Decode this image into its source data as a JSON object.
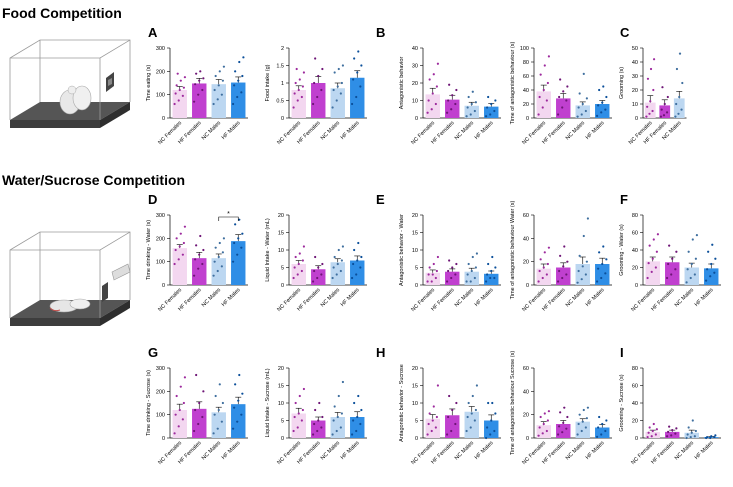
{
  "sections": [
    {
      "title": "Food Competition"
    },
    {
      "title": "Water/Sucrose Competition"
    }
  ],
  "panel_letters": [
    "A",
    "B",
    "C",
    "D",
    "E",
    "F",
    "G",
    "H",
    "I"
  ],
  "colors": {
    "NC Females": "#f3d7f0",
    "HF Females": "#c040cf",
    "NC Males": "#bcd7f1",
    "HF Males": "#2f8ee6",
    "dot_NC Females": "#9d2a9d",
    "dot_HF Females": "#6e1576",
    "dot_NC Males": "#3f6f9f",
    "dot_HF Males": "#0b4f9a"
  },
  "chart_data": [
    {
      "type": "bar",
      "categories": [
        "NC Females",
        "HF Females",
        "NC Males",
        "HF Males"
      ],
      "values": [
        120,
        148,
        145,
        152
      ],
      "errors": [
        15,
        22,
        20,
        24
      ],
      "points": [
        [
          60,
          75,
          95,
          105,
          120,
          130,
          140,
          160,
          175,
          190
        ],
        [
          70,
          100,
          120,
          145,
          160,
          170,
          190,
          200
        ],
        [
          60,
          80,
          100,
          120,
          140,
          160,
          180,
          200,
          220
        ],
        [
          60,
          90,
          110,
          140,
          160,
          180,
          200,
          240,
          260
        ]
      ],
      "ylabel": "Time eating (s)",
      "ylim": [
        0,
        300
      ],
      "yticks": [
        0,
        100,
        200,
        300
      ]
    },
    {
      "type": "bar",
      "categories": [
        "NC Females",
        "HF Females",
        "NC Males",
        "HF Males"
      ],
      "values": [
        0.8,
        1.0,
        0.85,
        1.15
      ],
      "errors": [
        0.12,
        0.18,
        0.15,
        0.2
      ],
      "points": [
        [
          0.3,
          0.5,
          0.6,
          0.7,
          0.8,
          0.9,
          1.0,
          1.1,
          1.3,
          1.4
        ],
        [
          0.4,
          0.6,
          0.8,
          1.0,
          1.2,
          1.4,
          1.7
        ],
        [
          0.3,
          0.5,
          0.7,
          0.8,
          0.9,
          1.0,
          1.3,
          1.4,
          1.5
        ],
        [
          0.4,
          0.6,
          0.9,
          1.1,
          1.3,
          1.5,
          1.7,
          1.9
        ]
      ],
      "ylabel": "Food intake (g)",
      "ylim": [
        0,
        2.0
      ],
      "yticks": [
        0.0,
        0.5,
        1.0,
        1.5,
        2.0
      ]
    },
    {
      "type": "bar",
      "categories": [
        "NC Females",
        "HF Females",
        "NC Males",
        "HF Males"
      ],
      "values": [
        13.5,
        10.5,
        7,
        6.5
      ],
      "errors": [
        3.5,
        2.5,
        2,
        1.8
      ],
      "points": [
        [
          3,
          5,
          8,
          10,
          14,
          18,
          22,
          25,
          31
        ],
        [
          3,
          5,
          8,
          10,
          13,
          16,
          19
        ],
        [
          1,
          2,
          4,
          6,
          8,
          9,
          12,
          15
        ],
        [
          1,
          2,
          4,
          6,
          8,
          10,
          12
        ]
      ],
      "ylabel": "Antagonistic behavior",
      "ylim": [
        0,
        40
      ],
      "yticks": [
        0,
        10,
        20,
        30,
        40
      ]
    },
    {
      "type": "bar",
      "categories": [
        "NC Females",
        "HF Females",
        "NC Males",
        "HF Males"
      ],
      "values": [
        38,
        28,
        18,
        20
      ],
      "errors": [
        9,
        7,
        5,
        5
      ],
      "points": [
        [
          5,
          15,
          25,
          30,
          40,
          50,
          62,
          75,
          88
        ],
        [
          5,
          15,
          25,
          30,
          38,
          45,
          55
        ],
        [
          2,
          5,
          10,
          15,
          20,
          28,
          35,
          63
        ],
        [
          3,
          8,
          12,
          18,
          22,
          30,
          40,
          45
        ]
      ],
      "ylabel": "Time of antagonistic behaviour (s)",
      "ylim": [
        0,
        100
      ],
      "yticks": [
        0,
        20,
        40,
        60,
        80,
        100
      ]
    },
    {
      "type": "bar",
      "categories": [
        "NC Females",
        "HF Females",
        "NC Males"
      ],
      "values": [
        11,
        9,
        14
      ],
      "errors": [
        5,
        4,
        5
      ],
      "points": [
        [
          1,
          3,
          5,
          8,
          12,
          20,
          28,
          35,
          42
        ],
        [
          1,
          2,
          4,
          6,
          10,
          15,
          22
        ],
        [
          1,
          3,
          6,
          10,
          15,
          25,
          35,
          46
        ]
      ],
      "ylabel": "Grooming (s)",
      "ylim": [
        0,
        50
      ],
      "yticks": [
        0,
        10,
        20,
        30,
        40,
        50
      ]
    },
    {
      "type": "bar",
      "categories": [
        "NC Females",
        "HF Females",
        "NC Males",
        "HF Males"
      ],
      "values": [
        158,
        115,
        115,
        188
      ],
      "errors": [
        15,
        25,
        18,
        28
      ],
      "points": [
        [
          90,
          110,
          130,
          150,
          165,
          180,
          200,
          220,
          250
        ],
        [
          40,
          70,
          90,
          110,
          130,
          150,
          170,
          210
        ],
        [
          40,
          60,
          80,
          100,
          120,
          140,
          160,
          180,
          200
        ],
        [
          100,
          130,
          160,
          180,
          200,
          220,
          260,
          280
        ]
      ],
      "significance": {
        "from": 2,
        "to": 3,
        "label": "*"
      },
      "ylabel": "Time drinking - Water (s)",
      "ylim": [
        0,
        300
      ],
      "yticks": [
        0,
        100,
        200,
        300
      ]
    },
    {
      "type": "bar",
      "categories": [
        "NC Females",
        "HF Females",
        "NC Males",
        "HF Males"
      ],
      "values": [
        6,
        4.5,
        6.5,
        7
      ],
      "errors": [
        1,
        1,
        1,
        1.3
      ],
      "points": [
        [
          2,
          3,
          4,
          5,
          6,
          7,
          8,
          9,
          11
        ],
        [
          1,
          2,
          3,
          4,
          5,
          6,
          8
        ],
        [
          2,
          3,
          4,
          5,
          6,
          7,
          8,
          10,
          11
        ],
        [
          2,
          3,
          5,
          6,
          7,
          8,
          10,
          12
        ]
      ],
      "ylabel": "Liquid Intake - Water (mL)",
      "ylim": [
        0,
        20
      ],
      "yticks": [
        0,
        5,
        10,
        15,
        20
      ]
    },
    {
      "type": "bar",
      "categories": [
        "NC Females",
        "HF Females",
        "NC Males",
        "HF Males"
      ],
      "values": [
        3.5,
        3.8,
        3.8,
        3.2
      ],
      "errors": [
        0.8,
        0.8,
        1,
        0.8
      ],
      "points": [
        [
          1,
          1,
          2,
          3,
          3,
          4,
          5,
          6,
          8
        ],
        [
          1,
          2,
          3,
          4,
          5,
          6,
          7
        ],
        [
          1,
          1,
          2,
          3,
          4,
          5,
          6,
          8,
          9
        ],
        [
          1,
          2,
          2,
          3,
          4,
          5,
          6,
          8
        ]
      ],
      "ylabel": "Antagonistic behavior - Water",
      "ylim": [
        0,
        20
      ],
      "yticks": [
        0,
        5,
        10,
        15,
        20
      ]
    },
    {
      "type": "bar",
      "categories": [
        "NC Females",
        "HF Females",
        "NC Males",
        "HF Males"
      ],
      "values": [
        14,
        15,
        18,
        18
      ],
      "errors": [
        4,
        4,
        6,
        5
      ],
      "points": [
        [
          3,
          6,
          9,
          12,
          15,
          18,
          22,
          28,
          32
        ],
        [
          3,
          6,
          9,
          12,
          16,
          20,
          25,
          33
        ],
        [
          2,
          5,
          9,
          12,
          16,
          20,
          25,
          42,
          57
        ],
        [
          3,
          6,
          10,
          14,
          18,
          22,
          28,
          33
        ]
      ],
      "ylabel": "Time of antagonistic behaviour Water (s)",
      "ylim": [
        0,
        60
      ],
      "yticks": [
        0,
        20,
        40,
        60
      ]
    },
    {
      "type": "bar",
      "categories": [
        "NC Females",
        "HF Females",
        "NC Males",
        "HF Males"
      ],
      "values": [
        27,
        26,
        20,
        19
      ],
      "errors": [
        5,
        6,
        5,
        5
      ],
      "points": [
        [
          8,
          15,
          20,
          25,
          30,
          38,
          45,
          52,
          58
        ],
        [
          8,
          12,
          18,
          24,
          30,
          38,
          45
        ],
        [
          3,
          8,
          12,
          18,
          24,
          30,
          38,
          52,
          57
        ],
        [
          5,
          10,
          14,
          18,
          24,
          30,
          38,
          46
        ]
      ],
      "ylabel": "Grooming - Water (s)",
      "ylim": [
        0,
        80
      ],
      "yticks": [
        0,
        20,
        40,
        60,
        80
      ]
    },
    {
      "type": "bar",
      "categories": [
        "NC Females",
        "HF Females",
        "NC Males",
        "HF Males"
      ],
      "values": [
        120,
        125,
        110,
        145
      ],
      "errors": [
        25,
        30,
        22,
        30
      ],
      "points": [
        [
          20,
          50,
          80,
          100,
          120,
          150,
          180,
          220,
          260
        ],
        [
          30,
          60,
          90,
          120,
          150,
          200,
          270
        ],
        [
          20,
          40,
          70,
          100,
          120,
          150,
          180,
          230
        ],
        [
          40,
          70,
          100,
          130,
          160,
          190,
          230,
          270
        ]
      ],
      "ylabel": "Time drinking - Sucrose (s)",
      "ylim": [
        0,
        300
      ],
      "yticks": [
        0,
        100,
        200,
        300
      ]
    },
    {
      "type": "bar",
      "categories": [
        "NC Females",
        "HF Females",
        "NC Males",
        "HF Males"
      ],
      "values": [
        7,
        5,
        6,
        6
      ],
      "errors": [
        1.5,
        1,
        1.3,
        1.5
      ],
      "points": [
        [
          2,
          3,
          5,
          6,
          7,
          8,
          10,
          12,
          14
        ],
        [
          1,
          2,
          3,
          4,
          5,
          6,
          8,
          10
        ],
        [
          1,
          2,
          3,
          5,
          6,
          7,
          9,
          12,
          16
        ],
        [
          1,
          2,
          4,
          5,
          6,
          8,
          10,
          12
        ]
      ],
      "ylabel": "Liquid Intake - Sucrose (mL)",
      "ylim": [
        0,
        20
      ],
      "yticks": [
        0,
        5,
        10,
        15,
        20
      ]
    },
    {
      "type": "bar",
      "categories": [
        "NC Females",
        "HF Females",
        "NC Males",
        "HF Males"
      ],
      "values": [
        5.5,
        6.5,
        7.5,
        5
      ],
      "errors": [
        1.2,
        1.8,
        1.5,
        1.6
      ],
      "points": [
        [
          1,
          2,
          3,
          4,
          5,
          6,
          7,
          9,
          15
        ],
        [
          1,
          2,
          4,
          6,
          8,
          10,
          12
        ],
        [
          2,
          3,
          5,
          6,
          7,
          8,
          10,
          12,
          15
        ],
        [
          0,
          1,
          2,
          3,
          5,
          7,
          10,
          10
        ]
      ],
      "ylabel": "Antagonistic behavior - Sucrose",
      "ylim": [
        0,
        20
      ],
      "yticks": [
        0,
        5,
        10,
        15,
        20
      ]
    },
    {
      "type": "bar",
      "categories": [
        "NC Females",
        "HF Females",
        "NC Males",
        "HF Males"
      ],
      "values": [
        11,
        12,
        14,
        9
      ],
      "errors": [
        3,
        3,
        2.5,
        2.5
      ],
      "points": [
        [
          2,
          4,
          6,
          9,
          12,
          15,
          18,
          21,
          23
        ],
        [
          3,
          5,
          8,
          10,
          13,
          18,
          22,
          26
        ],
        [
          3,
          6,
          9,
          12,
          14,
          17,
          20,
          24,
          26
        ],
        [
          1,
          3,
          6,
          9,
          12,
          15,
          18
        ]
      ],
      "ylabel": "Time of antagonistic behaviour Sucrose (s)",
      "ylim": [
        0,
        60
      ],
      "yticks": [
        0,
        20,
        40,
        60
      ]
    },
    {
      "type": "bar",
      "categories": [
        "NC Females",
        "HF Females",
        "NC Males",
        "HF Males"
      ],
      "values": [
        7,
        7,
        6,
        1
      ],
      "errors": [
        2,
        2,
        3,
        0.8
      ],
      "points": [
        [
          1,
          2,
          4,
          6,
          8,
          10,
          12,
          16
        ],
        [
          2,
          3,
          5,
          7,
          9,
          11,
          13
        ],
        [
          0,
          1,
          2,
          4,
          6,
          8,
          12,
          20
        ],
        [
          0,
          0,
          1,
          1,
          2,
          3
        ]
      ],
      "ylabel": "Grooming - Sucrose (s)",
      "ylim": [
        0,
        80
      ],
      "yticks": [
        0,
        20,
        40,
        60,
        80
      ]
    }
  ]
}
